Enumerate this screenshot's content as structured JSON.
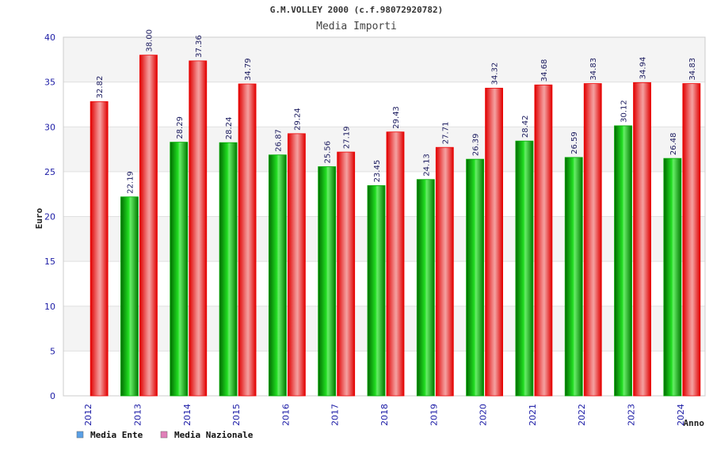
{
  "chart_data": {
    "type": "bar",
    "title": "G.M.VOLLEY 2000 (c.f.98072920782)",
    "subtitle": "Media Importi",
    "ylabel": "Euro",
    "xlabel": "Anno",
    "ylim": [
      0,
      40
    ],
    "yticks": [
      0,
      5,
      10,
      15,
      20,
      25,
      30,
      35,
      40
    ],
    "grid": true,
    "legend_position": "bottom-left",
    "categories": [
      "2012",
      "2013",
      "2014",
      "2015",
      "2016",
      "2017",
      "2018",
      "2019",
      "2020",
      "2021",
      "2022",
      "2023",
      "2024"
    ],
    "series": [
      {
        "name": "Media Ente",
        "color": "#00aa00",
        "legend_color": "#5aa0e6",
        "values": [
          null,
          22.19,
          28.29,
          28.24,
          26.87,
          25.56,
          23.45,
          24.13,
          26.39,
          28.42,
          26.59,
          30.12,
          26.48
        ],
        "labels": [
          "",
          "22.19",
          "28.29",
          "28.24",
          "26.87",
          "25.56",
          "23.45",
          "24.13",
          "26.39",
          "28.42",
          "26.59",
          "30.12",
          "26.48"
        ]
      },
      {
        "name": "Media Nazionale",
        "color": "#ee0000",
        "legend_color": "#e07fb8",
        "values": [
          32.82,
          38.0,
          37.36,
          34.79,
          29.24,
          27.19,
          29.43,
          27.71,
          34.32,
          34.68,
          34.83,
          34.94,
          34.83
        ],
        "labels": [
          "32.82",
          "38.00",
          "37.36",
          "34.79",
          "29.24",
          "27.19",
          "29.43",
          "27.71",
          "34.32",
          "34.68",
          "34.83",
          "34.94",
          "34.83"
        ]
      }
    ]
  }
}
